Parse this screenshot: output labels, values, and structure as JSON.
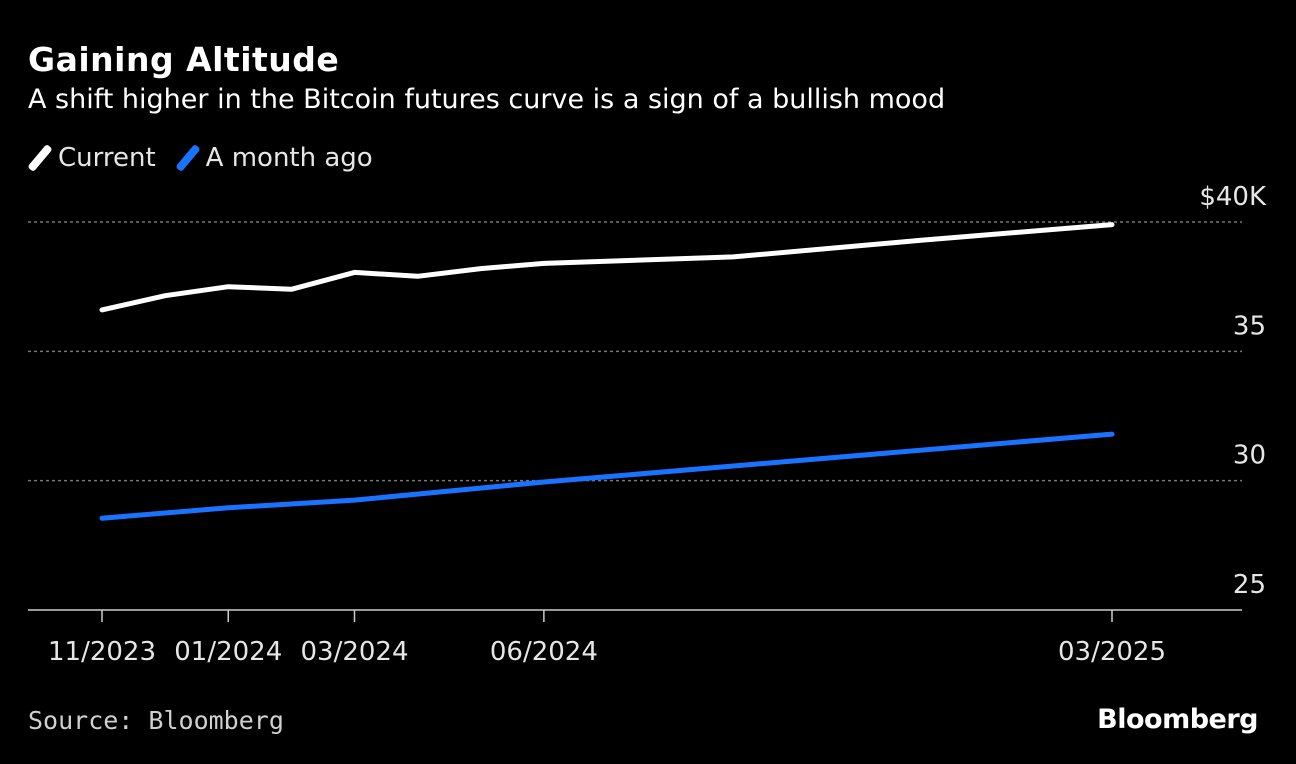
{
  "header": {
    "title": "Gaining Altitude",
    "subtitle": "A shift higher in the Bitcoin futures curve is a sign of a bullish mood"
  },
  "footer": {
    "source": "Source: Bloomberg",
    "brand": "Bloomberg"
  },
  "colors": {
    "background": "#000000",
    "current": "#ffffff",
    "month_ago": "#1a73ff",
    "grid": "#777777",
    "axis": "#cccccc"
  },
  "chart_data": {
    "type": "line",
    "title": "Gaining Altitude",
    "subtitle": "A shift higher in the Bitcoin futures curve is a sign of a bullish mood",
    "x": [
      "2023-11",
      "2023-12",
      "2024-01",
      "2024-02",
      "2024-03",
      "2024-04",
      "2024-05",
      "2024-06",
      "2024-09",
      "2024-12",
      "2025-03"
    ],
    "x_ticks": [
      "11/2023",
      "01/2024",
      "03/2024",
      "06/2024",
      "03/2025"
    ],
    "x_tick_positions": [
      "2023-11",
      "2024-01",
      "2024-03",
      "2024-06",
      "2025-03"
    ],
    "y_ticks": [
      "$40K",
      "35",
      "30",
      "25"
    ],
    "y_tick_values": [
      40,
      35,
      30,
      25
    ],
    "ylim": [
      25,
      40
    ],
    "y_unit": "$K",
    "grid": true,
    "legend_position": "top-left",
    "series": [
      {
        "name": "Current",
        "x": [
          "2023-11",
          "2023-12",
          "2024-01",
          "2024-02",
          "2024-03",
          "2024-04",
          "2024-05",
          "2024-06",
          "2024-09",
          "2024-12",
          "2025-03"
        ],
        "values": [
          36.6,
          37.15,
          37.5,
          37.4,
          38.05,
          37.9,
          38.2,
          38.4,
          38.65,
          39.3,
          39.9
        ]
      },
      {
        "name": "A month ago",
        "x": [
          "2023-11",
          "2024-01",
          "2024-03",
          "2024-06",
          "2025-03"
        ],
        "values": [
          28.55,
          28.95,
          29.25,
          29.95,
          31.8
        ]
      }
    ]
  }
}
